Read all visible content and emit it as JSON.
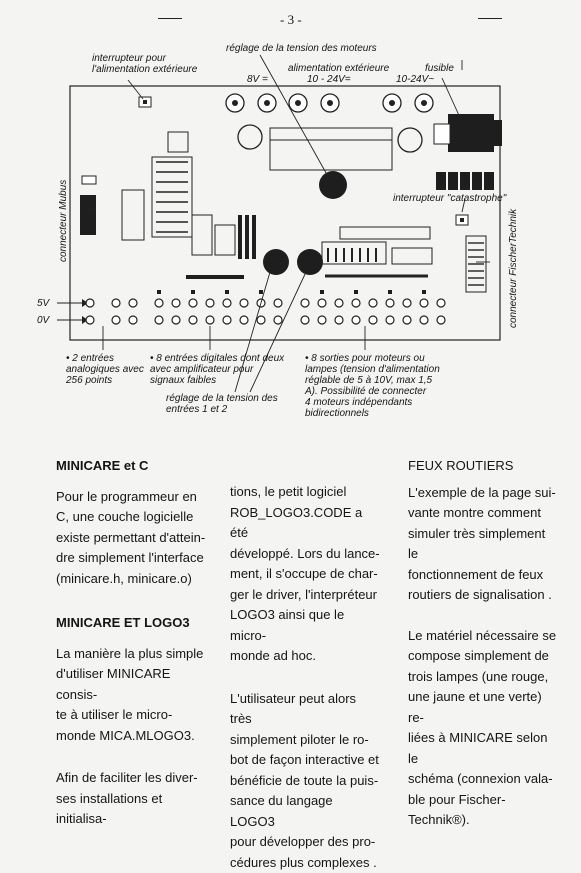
{
  "page": {
    "number": "- 3 -"
  },
  "diagram": {
    "labels": {
      "switch_external": [
        "interrupteur pour",
        "l'alimentation extérieure"
      ],
      "motor_voltage": "réglage de la tension des moteurs",
      "ext_supply": "alimentation extérieure",
      "v8": "8V =",
      "v10_24_dc": "10 - 24V=",
      "fuse": "fusible",
      "v10_24_ac": "10-24V~",
      "catastrophe": "interrupteur \"catastrophe\"",
      "mubus": "connecteur Mubus",
      "fischer": "connecteur FischerTechnik",
      "v5": "5V",
      "v0": "0V"
    },
    "notes": {
      "analog": [
        "• 2 entrées",
        "analogiques avec",
        "256 points"
      ],
      "digital": [
        "• 8 entrées digitales dont deux",
        "avec amplificateur pour",
        "signaux faibles"
      ],
      "input_voltage": [
        "réglage de  la tension des",
        "entrées 1 et 2"
      ],
      "outputs": [
        "• 8 sorties pour moteurs ou",
        "lampes (tension d'alimentation",
        "réglable de 5 à 10V, max 1,5",
        "A). Possibilité de connecter",
        "4 moteurs indépendants",
        "bidirectionnels"
      ]
    }
  },
  "col1": {
    "heading1": "MINICARE et C",
    "para1": [
      "Pour le programmeur en",
      "C, une couche logicielle",
      "existe permettant d'attein-",
      "dre simplement l'interface",
      "(minicare.h, minicare.o)"
    ],
    "heading2": "MINICARE ET LOGO3",
    "para2": [
      "La manière la plus simple",
      "d'utiliser MINICARE consis-",
      "te  à  utiliser  le  micro-",
      "monde MICA.MLOGO3."
    ],
    "para3": [
      "Afin de faciliter les diver-",
      "ses installations et initialisa-"
    ]
  },
  "col2": {
    "para1": [
      "tions,   le   petit   logiciel",
      "ROB_LOGO3.CODE  a  été",
      "développé.  Lors du lance-",
      "ment, il s'occupe de char-",
      "ger le driver, l'interpréteur",
      "LOGO3 ainsi que le micro-",
      "monde ad hoc."
    ],
    "para2": [
      "L'utilisateur peut alors très",
      "simplement piloter le ro-",
      "bot de façon interactive et",
      "bénéficie de toute la puis-",
      "sance du langage LOGO3",
      "pour développer des pro-",
      "cédures plus complexes ."
    ]
  },
  "col3": {
    "heading": "FEUX ROUTIERS",
    "para1": [
      "L'exemple de la page sui-",
      "vante  montre  comment",
      "simuler très simplement le",
      "fonctionnement de feux",
      "routiers de signalisation ."
    ],
    "para2": [
      "Le matériel nécessaire se",
      "compose simplement de",
      "trois lampes (une rouge,",
      "une jaune et une verte) re-",
      "liées à MINICARE selon le",
      "schéma  (connexion vala-",
      "ble      pour      Fischer-",
      "Technik®)."
    ]
  }
}
